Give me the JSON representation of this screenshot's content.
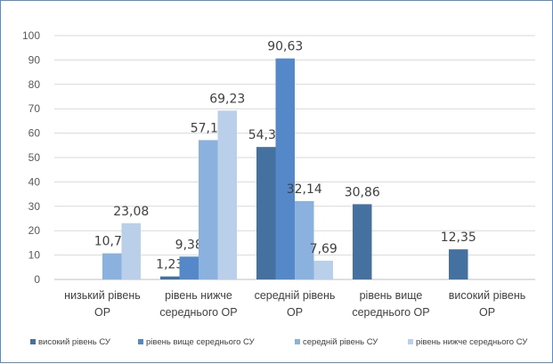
{
  "chart_data": {
    "type": "bar",
    "categories": [
      [
        "низький рівень",
        "ОР"
      ],
      [
        "рівень нижче",
        "середнього ОР"
      ],
      [
        "середній рівень",
        "ОР"
      ],
      [
        "рівень вище",
        "середнього ОР"
      ],
      [
        "високий рівень",
        "ОР"
      ]
    ],
    "series": [
      {
        "name": "високий рівень СУ",
        "color": "#44719f",
        "values": [
          0,
          1.23,
          54.32,
          30.86,
          12.35
        ],
        "labels": [
          "",
          "1,23",
          "54,32",
          "30,86",
          "12,35"
        ]
      },
      {
        "name": "рівень вище середнього СУ",
        "color": "#5588c8",
        "values": [
          0,
          9.38,
          90.63,
          0,
          0
        ],
        "labels": [
          "",
          "9,38",
          "90,63",
          "",
          ""
        ]
      },
      {
        "name": "середній рівень СУ",
        "color": "#8bb1de",
        "values": [
          10.71,
          57.14,
          32.14,
          0,
          0
        ],
        "labels": [
          "10,71",
          "57,14",
          "32,14",
          "",
          ""
        ]
      },
      {
        "name": "рівень нижче середнього СУ",
        "color": "#b9cfea",
        "values": [
          23.08,
          69.23,
          7.69,
          0,
          0
        ],
        "labels": [
          "23,08",
          "69,23",
          "7,69",
          "",
          ""
        ]
      }
    ],
    "yticks": [
      "0",
      "10",
      "20",
      "30",
      "40",
      "50",
      "60",
      "70",
      "80",
      "90",
      "100"
    ],
    "ylim": [
      0,
      100
    ],
    "grid": true,
    "legend": "bottom",
    "title": "",
    "xlabel": "",
    "ylabel": ""
  }
}
